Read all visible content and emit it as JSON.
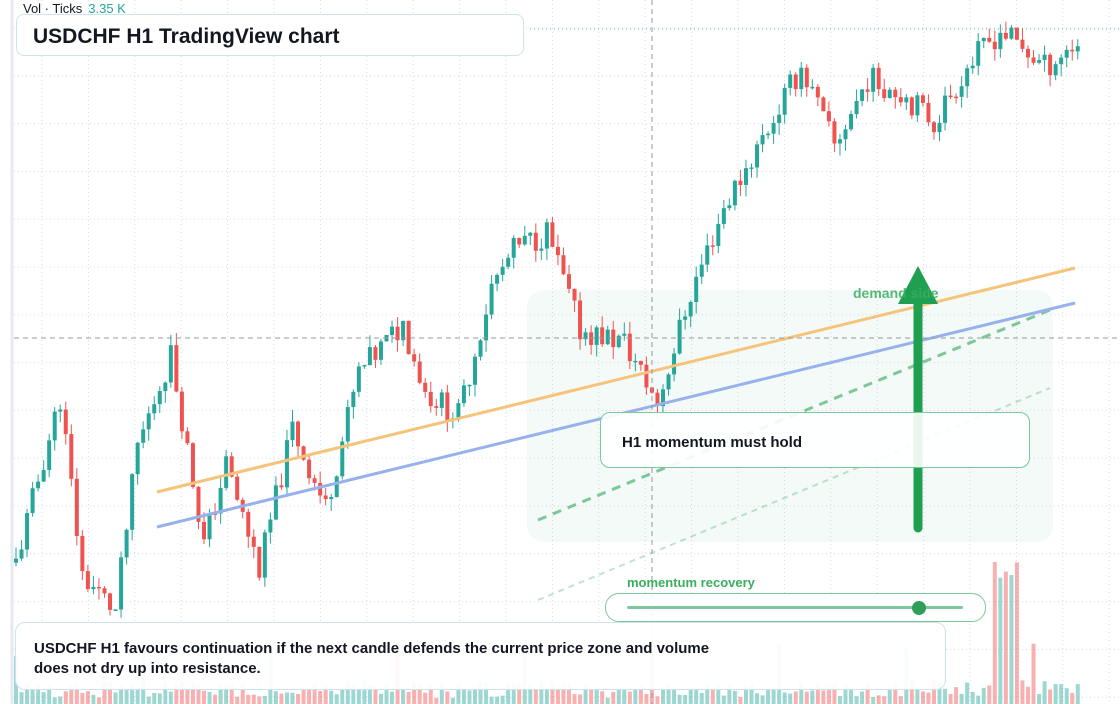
{
  "header": {
    "title": "USDCHF H1 TradingView chart",
    "volume_label": "Vol · Ticks",
    "volume_value": "3.35 K"
  },
  "annotations": {
    "callout_text": "H1 momentum must hold",
    "zone_label": "demand side",
    "momentum_label": "momentum recovery",
    "momentum_level": 0.87,
    "summary_text": "USDCHF H1 favours continuation if the next candle defends the current price zone and volume does not dry up into resistance."
  },
  "colors": {
    "up": "#26a69a",
    "down": "#ef5350",
    "trend_orange": "#f6c37a",
    "trend_blue": "#96b1ec",
    "zone_green": "#2fa55a",
    "grid": "#d6dbe4",
    "crosshair": "#9598a1"
  },
  "chart_data": {
    "type": "candlestick",
    "title": "USDCHF H1 TradingView chart",
    "symbol": "USDCHF",
    "timeframe": "H1",
    "price_axis_visible": false,
    "time_axis_visible": false,
    "grid": true,
    "volume_label": "Vol · Ticks",
    "last_volume": "3.35 K",
    "path_anchors": [
      [
        0,
        0.11
      ],
      [
        8,
        0.38
      ],
      [
        12,
        0.09
      ],
      [
        18,
        0.03
      ],
      [
        22,
        0.3
      ],
      [
        28,
        0.45
      ],
      [
        34,
        0.14
      ],
      [
        38,
        0.27
      ],
      [
        44,
        0.1
      ],
      [
        50,
        0.33
      ],
      [
        56,
        0.2
      ],
      [
        62,
        0.42
      ],
      [
        70,
        0.5
      ],
      [
        74,
        0.39
      ],
      [
        80,
        0.35
      ],
      [
        86,
        0.56
      ],
      [
        90,
        0.62
      ],
      [
        96,
        0.65
      ],
      [
        102,
        0.49
      ],
      [
        110,
        0.47
      ],
      [
        116,
        0.37
      ],
      [
        122,
        0.55
      ],
      [
        128,
        0.69
      ],
      [
        136,
        0.82
      ],
      [
        142,
        0.92
      ],
      [
        148,
        0.79
      ],
      [
        154,
        0.9
      ],
      [
        160,
        0.88
      ],
      [
        166,
        0.83
      ],
      [
        172,
        0.92
      ],
      [
        178,
        0.98
      ],
      [
        186,
        0.92
      ],
      [
        192,
        0.96
      ]
    ]
  }
}
